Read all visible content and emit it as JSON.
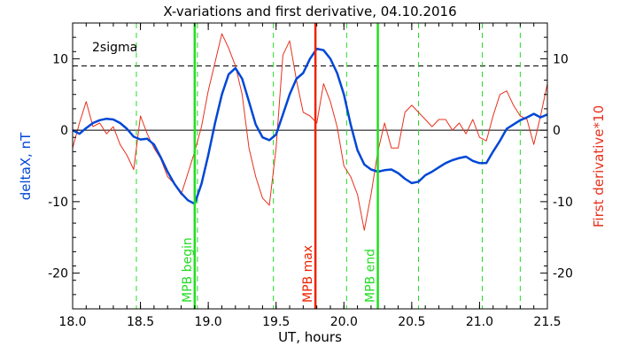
{
  "chart_data": {
    "type": "line",
    "title": "X-variations and first derivative, 04.10.2016",
    "xlabel": "UT, hours",
    "ylabel_left": "deltaX, nT",
    "ylabel_right": "First derivative*10",
    "xlim": [
      18.0,
      21.5
    ],
    "ylim": [
      -25,
      15
    ],
    "x_ticks": [
      "18.0",
      "18.5",
      "19.0",
      "19.5",
      "20.0",
      "20.5",
      "21.0",
      "21.5"
    ],
    "y_ticks_left": [
      "-20",
      "-10",
      "0",
      "10"
    ],
    "y_ticks_right": [
      "-20",
      "-10",
      "0",
      "10"
    ],
    "colors": {
      "deltaX": "#0047d6",
      "derivative": "#e8301c",
      "mpb_edges": "#22dd22",
      "mpb_max": "#ee2200",
      "zero_line": "#000000",
      "sigma_line": "#000000"
    },
    "sigma": {
      "label": "2sigma",
      "value": 9
    },
    "series": [
      {
        "name": "deltaX, nT",
        "x": [
          18.0,
          18.05,
          18.1,
          18.15,
          18.2,
          18.25,
          18.3,
          18.35,
          18.4,
          18.45,
          18.5,
          18.55,
          18.6,
          18.65,
          18.7,
          18.75,
          18.8,
          18.85,
          18.9,
          18.95,
          19.0,
          19.05,
          19.1,
          19.15,
          19.2,
          19.25,
          19.3,
          19.35,
          19.4,
          19.45,
          19.5,
          19.55,
          19.6,
          19.65,
          19.7,
          19.75,
          19.8,
          19.85,
          19.9,
          19.95,
          20.0,
          20.05,
          20.1,
          20.15,
          20.2,
          20.25,
          20.3,
          20.35,
          20.4,
          20.45,
          20.5,
          20.55,
          20.6,
          20.65,
          20.7,
          20.75,
          20.8,
          20.85,
          20.9,
          20.95,
          21.0,
          21.05,
          21.1,
          21.15,
          21.2,
          21.25,
          21.3,
          21.35,
          21.4,
          21.45,
          21.5
        ],
        "values": [
          0,
          -0.5,
          0.3,
          1.0,
          1.4,
          1.6,
          1.5,
          1.0,
          0.2,
          -0.9,
          -1.3,
          -1.2,
          -2.0,
          -3.8,
          -5.8,
          -7.5,
          -8.8,
          -9.8,
          -10.3,
          -7.5,
          -3.5,
          1.0,
          5.0,
          7.8,
          8.7,
          7.2,
          4.0,
          0.8,
          -1.0,
          -1.4,
          -0.6,
          2.2,
          5.0,
          7.2,
          8.0,
          10.0,
          11.4,
          11.2,
          10.0,
          8.0,
          5.0,
          0.8,
          -2.8,
          -4.8,
          -5.5,
          -5.8,
          -5.6,
          -5.5,
          -6.0,
          -6.8,
          -7.4,
          -7.2,
          -6.3,
          -5.8,
          -5.2,
          -4.6,
          -4.2,
          -3.9,
          -3.7,
          -4.3,
          -4.6,
          -4.6,
          -3.0,
          -1.5,
          0.2,
          0.8,
          1.4,
          1.8,
          2.3,
          1.8,
          2.2
        ]
      },
      {
        "name": "First derivative*10",
        "x": [
          18.0,
          18.05,
          18.1,
          18.15,
          18.2,
          18.25,
          18.3,
          18.35,
          18.4,
          18.45,
          18.5,
          18.55,
          18.6,
          18.65,
          18.7,
          18.75,
          18.8,
          18.85,
          18.9,
          18.95,
          19.0,
          19.05,
          19.1,
          19.15,
          19.2,
          19.25,
          19.3,
          19.35,
          19.4,
          19.45,
          19.5,
          19.55,
          19.6,
          19.65,
          19.7,
          19.75,
          19.8,
          19.85,
          19.9,
          19.95,
          20.0,
          20.05,
          20.1,
          20.15,
          20.2,
          20.25,
          20.3,
          20.35,
          20.4,
          20.45,
          20.5,
          20.55,
          20.6,
          20.65,
          20.7,
          20.75,
          20.8,
          20.85,
          20.9,
          20.95,
          21.0,
          21.05,
          21.1,
          21.15,
          21.2,
          21.25,
          21.3,
          21.35,
          21.4,
          21.45,
          21.5
        ],
        "values": [
          -2.5,
          1.0,
          4.0,
          0.5,
          1.0,
          -0.5,
          0.5,
          -2.0,
          -3.5,
          -5.5,
          2.0,
          -0.5,
          -2.5,
          -4.0,
          -6.5,
          -7.5,
          -9.0,
          -6.0,
          -3.0,
          0.5,
          5.5,
          9.5,
          13.5,
          11.5,
          9.0,
          5.0,
          -2.5,
          -6.5,
          -9.5,
          -10.5,
          -2.5,
          10.5,
          12.5,
          7.0,
          2.5,
          2.0,
          1.0,
          6.5,
          4.0,
          0.5,
          -5.0,
          -6.5,
          -9.0,
          -14.0,
          -9.0,
          -3.0,
          1.0,
          -2.5,
          -2.5,
          2.5,
          3.5,
          2.5,
          1.5,
          0.5,
          1.5,
          1.5,
          0.0,
          1.0,
          -0.5,
          1.5,
          -1.0,
          -1.5,
          2.0,
          5.0,
          5.5,
          3.5,
          2.0,
          1.5,
          -2.0,
          2.0,
          6.5
        ]
      }
    ],
    "vlines_dashed": [
      18.47,
      18.92,
      19.48,
      20.02,
      20.55,
      21.02,
      21.3
    ],
    "vlines_marked": [
      {
        "x": 18.9,
        "label": "MPB begin",
        "role": "mpb_edges"
      },
      {
        "x": 19.79,
        "label": "MPB max",
        "role": "mpb_max"
      },
      {
        "x": 20.25,
        "label": "MPB end",
        "role": "mpb_edges"
      }
    ],
    "grid": false,
    "legend": "none"
  }
}
